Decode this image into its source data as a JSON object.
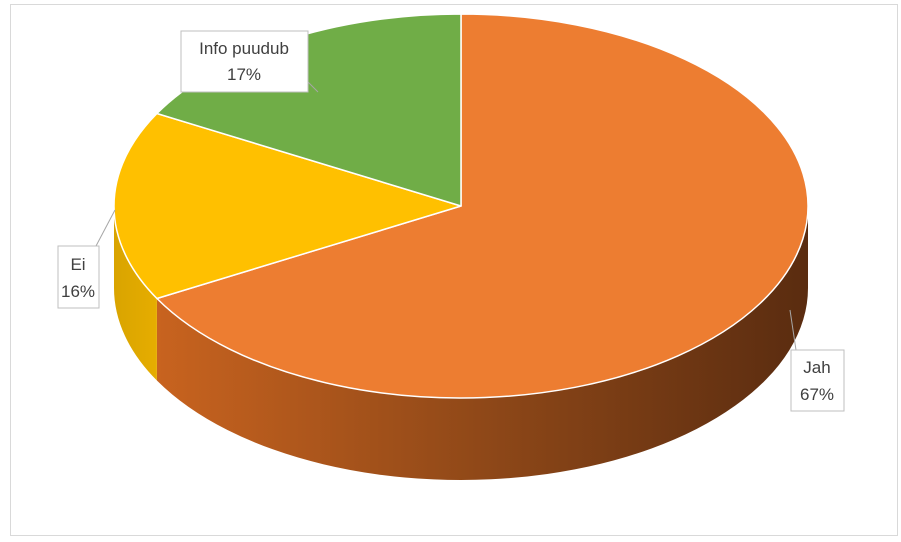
{
  "chart_data": {
    "type": "pie",
    "style": "3d-pie",
    "title": "",
    "slices": [
      {
        "name": "Jah",
        "pct_label": "67%",
        "value": 67,
        "color": "#ED7D31"
      },
      {
        "name": "Ei",
        "pct_label": "16%",
        "value": 16,
        "color": "#FFC000"
      },
      {
        "name": "Info puudub",
        "pct_label": "17%",
        "value": 17,
        "color": "#70AD47"
      }
    ],
    "legend": "none",
    "data_labels": "callouts"
  }
}
